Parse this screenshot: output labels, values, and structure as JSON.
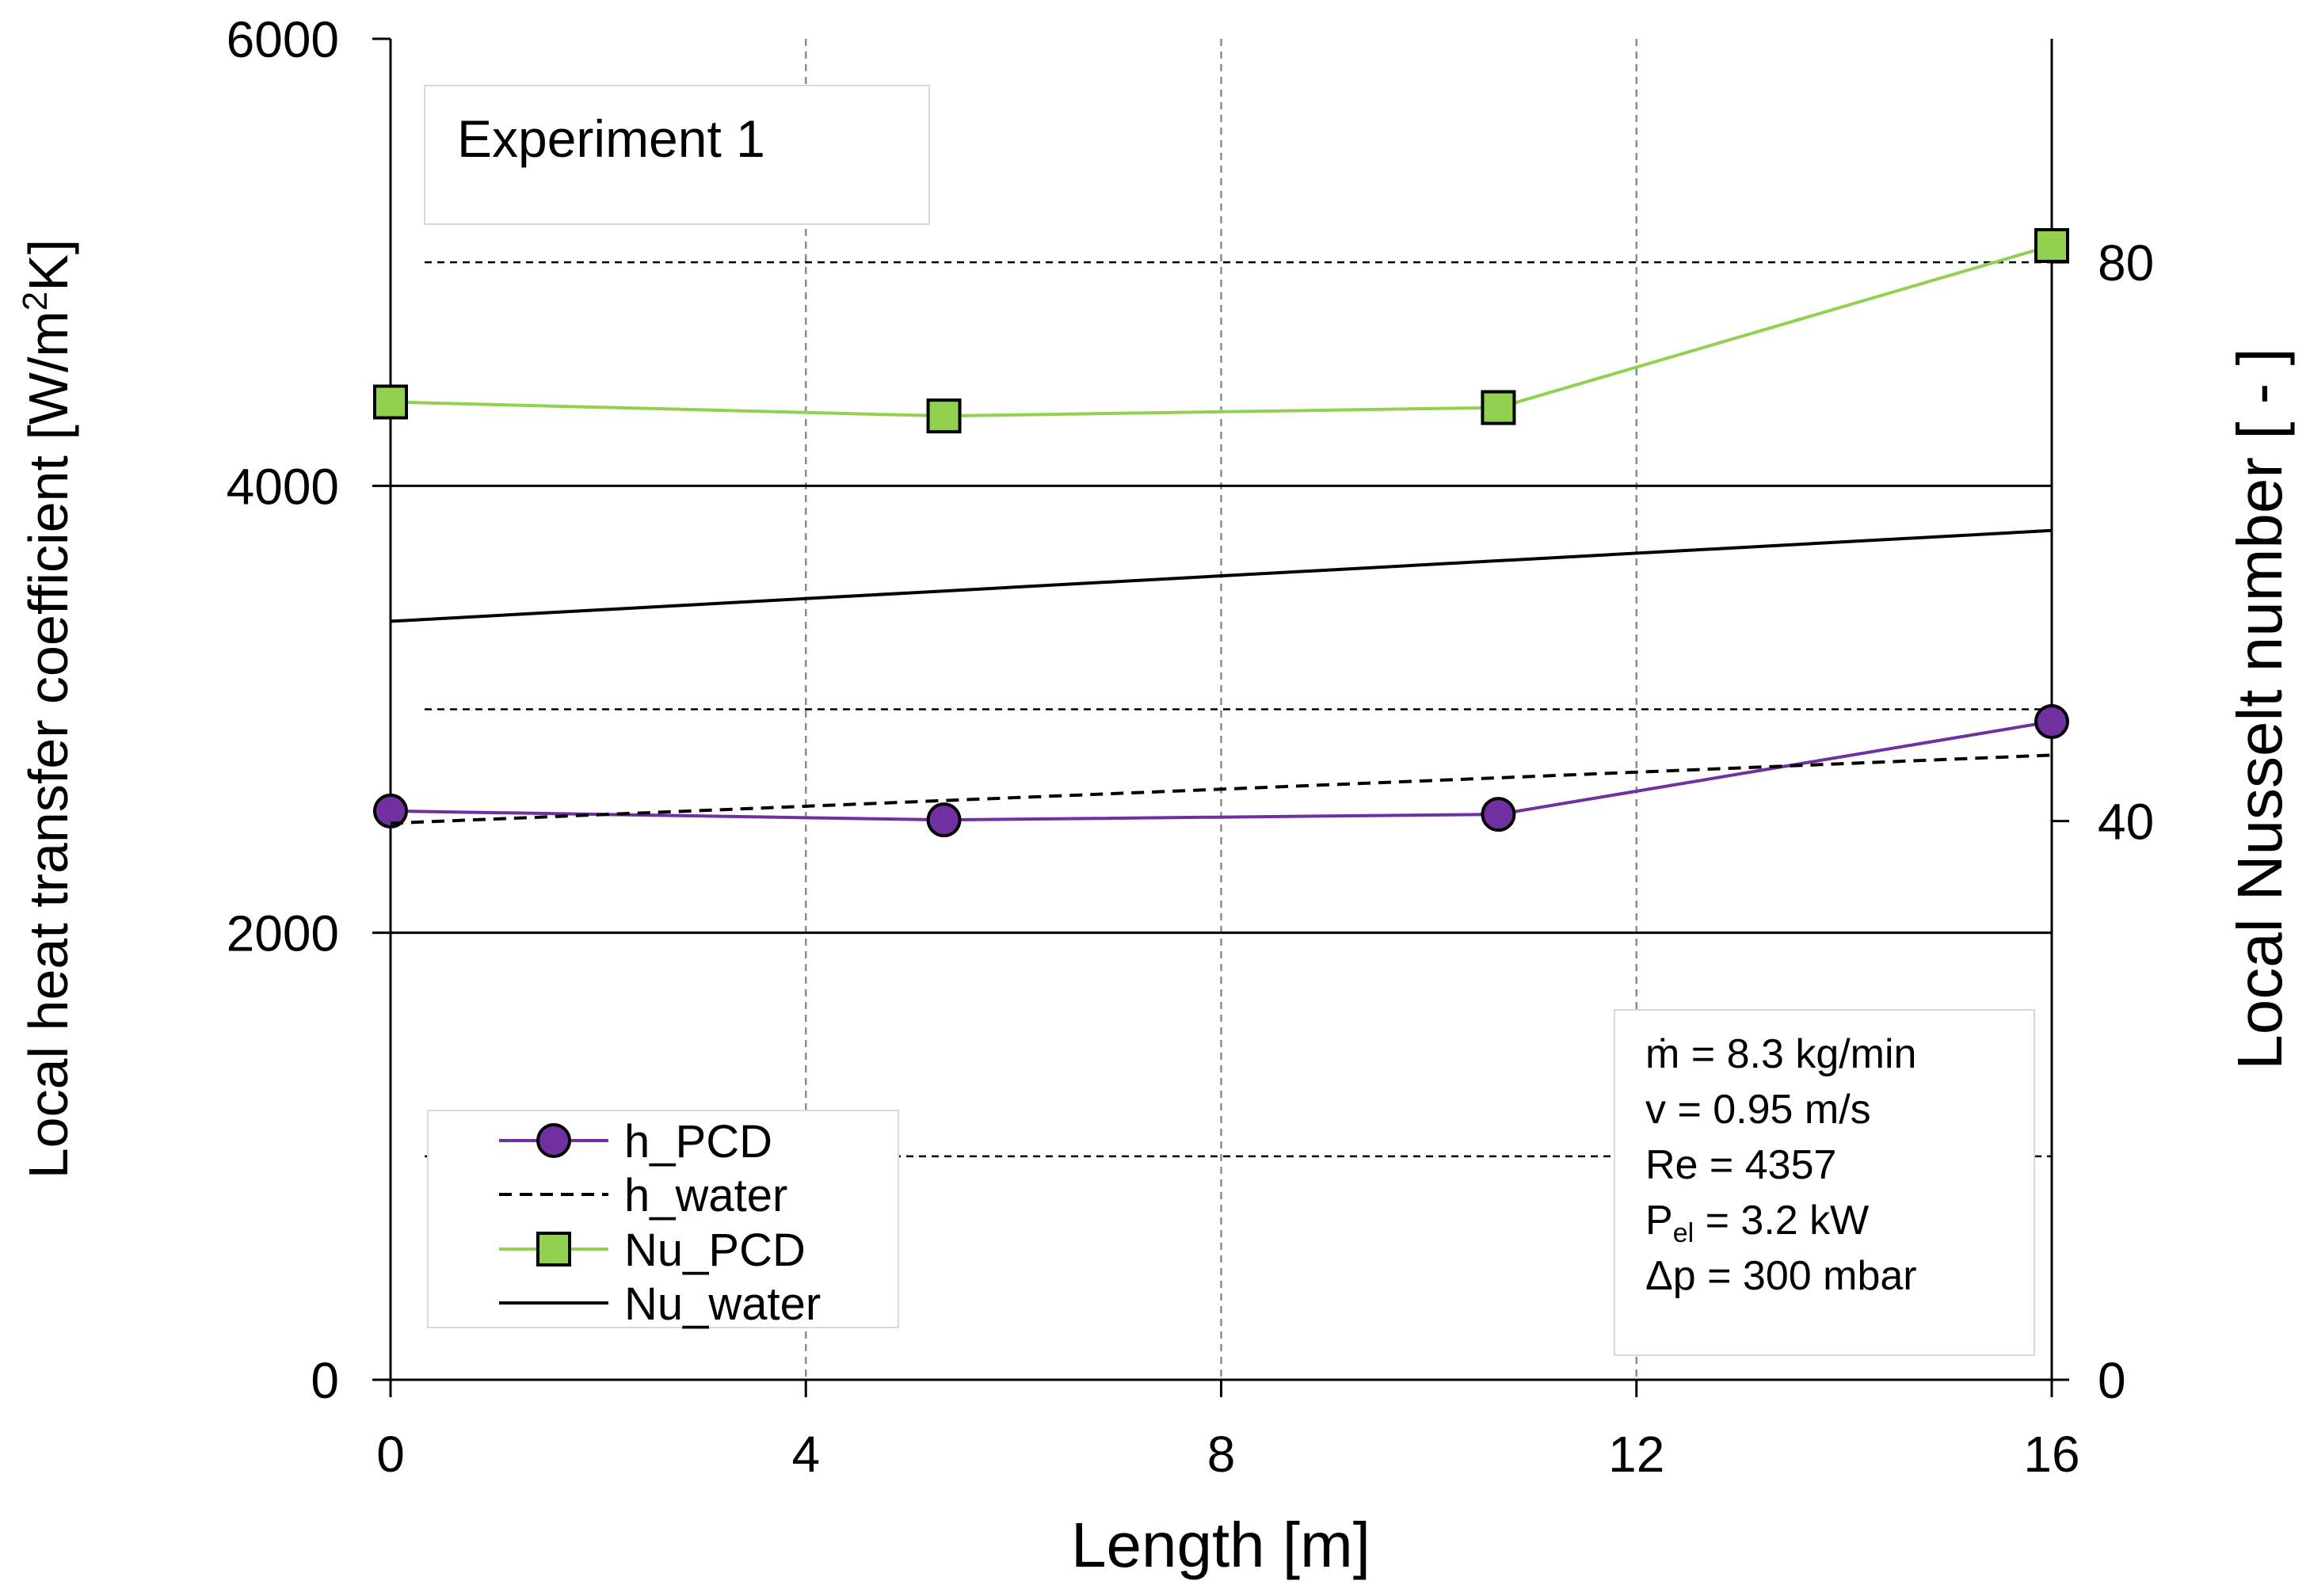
{
  "chart_data": {
    "type": "line",
    "annotation_title": "Experiment 1",
    "xlabel": "Length [m]",
    "ylabel_left": "Local heat transfer coefficient [W/m²K]",
    "ylabel_left_prefix": "Local heat transfer coefficient [W/m",
    "ylabel_left_sup": "2",
    "ylabel_left_suffix": "K]",
    "ylabel_right": "Local Nusselt number [ - ]",
    "xlim": [
      0,
      16
    ],
    "ylim_left": [
      0,
      6000
    ],
    "ylim_right": [
      0,
      96
    ],
    "x_ticks": [
      "0",
      "4",
      "8",
      "12",
      "16"
    ],
    "y_left_ticks": [
      "0",
      "2000",
      "4000",
      "6000"
    ],
    "y_right_ticks": [
      "0",
      "40",
      "80"
    ],
    "grid": "dashed vertical and horizontal",
    "legend_position": "bottom-left",
    "series": [
      {
        "name": "h_PCD",
        "axis": "left",
        "style": "solid",
        "marker": "circle",
        "color": "#7030a0",
        "marker_fill": "#7030a0",
        "x": [
          0,
          5.33,
          10.67,
          16
        ],
        "values": [
          2545,
          2505,
          2530,
          2945
        ]
      },
      {
        "name": "h_water",
        "axis": "left",
        "style": "dashed",
        "marker": "none",
        "color": "#000000",
        "x": [
          0,
          16
        ],
        "values": [
          2490,
          2795
        ]
      },
      {
        "name": "Nu_PCD",
        "axis": "right",
        "style": "solid",
        "marker": "square",
        "color": "#92d050",
        "marker_fill": "#92d050",
        "x": [
          0,
          5.33,
          10.67,
          16
        ],
        "values": [
          70,
          69,
          69.6,
          81.2
        ]
      },
      {
        "name": "Nu_water",
        "axis": "right",
        "style": "solid",
        "marker": "none",
        "color": "#000000",
        "x": [
          0,
          16
        ],
        "values": [
          54.3,
          60.8
        ]
      }
    ],
    "conditions": {
      "mass_flow": "ṁ = 8.3 kg/min",
      "velocity": "v = 0.95 m/s",
      "reynolds": "Re = 4357",
      "power_main": "P",
      "power_sub": "el",
      "power_rest": " = 3.2 kW",
      "pressure_drop": "Δp = 300 mbar"
    }
  }
}
